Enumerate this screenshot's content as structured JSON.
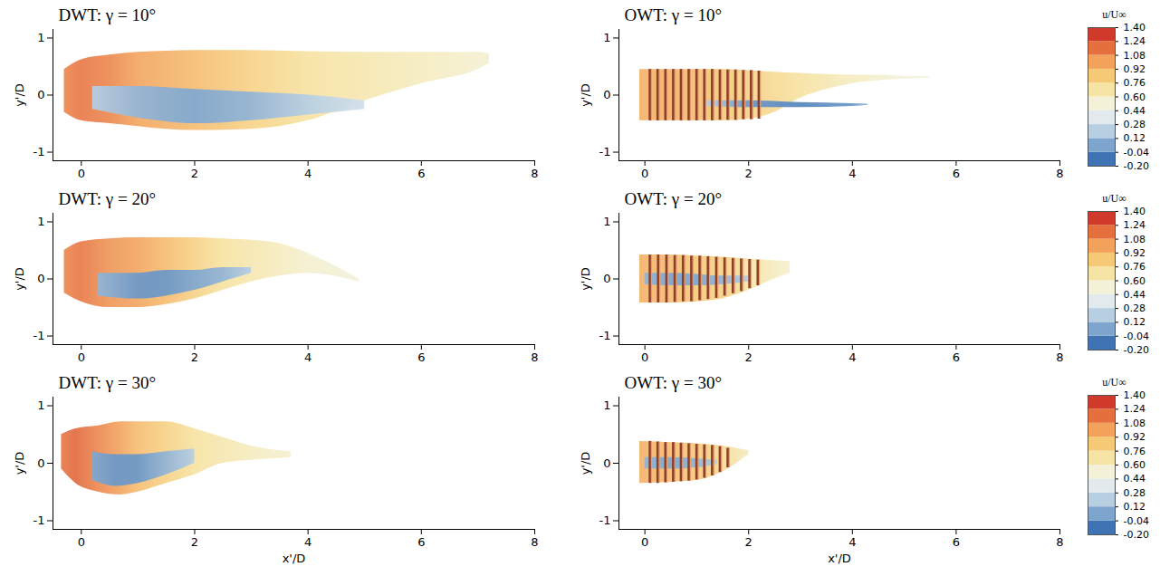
{
  "chart_data": [
    {
      "type": "area",
      "title": "DWT: γ = 10°",
      "ylabel": "y'/D",
      "xlim": [
        -0.5,
        8
      ],
      "ylim": [
        -1.15,
        1.15
      ],
      "xticks": [
        0,
        2,
        4,
        6,
        8
      ],
      "yticks": [
        -1,
        0,
        1
      ],
      "layers": [
        {
          "x": [
            -0.3,
            0,
            0.5,
            1,
            1.5,
            2,
            3,
            4,
            5,
            6,
            7,
            7.2
          ],
          "upper": [
            0.45,
            0.62,
            0.7,
            0.75,
            0.77,
            0.78,
            0.78,
            0.76,
            0.75,
            0.75,
            0.75,
            0.72
          ],
          "lower": [
            -0.3,
            -0.45,
            -0.5,
            -0.55,
            -0.6,
            -0.62,
            -0.6,
            -0.45,
            -0.1,
            0.2,
            0.45,
            0.55
          ],
          "u": [
            1.1,
            1.15,
            1.1,
            1.0,
            0.95,
            0.9,
            0.8,
            0.7,
            0.65,
            0.6,
            0.55,
            0.55
          ]
        },
        {
          "x": [
            0.2,
            1,
            2,
            3,
            4,
            5
          ],
          "upper": [
            0.15,
            0.15,
            0.1,
            0.05,
            0.0,
            -0.1
          ],
          "lower": [
            -0.25,
            -0.4,
            -0.5,
            -0.45,
            -0.35,
            -0.25
          ],
          "u": [
            0.2,
            0.1,
            0.05,
            0.1,
            0.2,
            0.3
          ]
        }
      ]
    },
    {
      "type": "area",
      "title": "OWT: γ = 10°",
      "ylabel": "y'/D",
      "xlim": [
        -0.5,
        8
      ],
      "ylim": [
        -1.15,
        1.15
      ],
      "xticks": [
        0,
        2,
        4,
        6,
        8
      ],
      "yticks": [
        -1,
        0,
        1
      ],
      "layers": [
        {
          "x": [
            -0.1,
            0.5,
            1,
            1.5,
            2,
            2.5,
            3,
            3.5,
            4,
            4.5,
            5,
            5.5
          ],
          "upper": [
            0.45,
            0.45,
            0.45,
            0.45,
            0.43,
            0.4,
            0.38,
            0.36,
            0.35,
            0.35,
            0.33,
            0.32
          ],
          "lower": [
            -0.45,
            -0.45,
            -0.45,
            -0.45,
            -0.42,
            -0.3,
            -0.05,
            0.1,
            0.2,
            0.25,
            0.28,
            0.3
          ],
          "u": [
            0.95,
            0.95,
            0.9,
            0.85,
            0.8,
            0.75,
            0.7,
            0.65,
            0.6,
            0.55,
            0.5,
            0.5
          ]
        },
        {
          "x": [
            1.2,
            2,
            3,
            4,
            4.3
          ],
          "upper": [
            -0.1,
            -0.1,
            -0.13,
            -0.15,
            -0.16
          ],
          "lower": [
            -0.2,
            -0.22,
            -0.22,
            -0.2,
            -0.18
          ],
          "u": [
            0.2,
            0.0,
            -0.05,
            0.0,
            0.1
          ]
        }
      ],
      "rings": {
        "x": [
          0.1,
          0.25,
          0.4,
          0.55,
          0.7,
          0.85,
          1.0,
          1.15,
          1.3,
          1.45,
          1.6,
          1.75,
          1.9,
          2.05,
          2.2
        ],
        "top": [
          0.45,
          0.45,
          0.45,
          0.45,
          0.45,
          0.45,
          0.45,
          0.45,
          0.45,
          0.44,
          0.44,
          0.44,
          0.43,
          0.43,
          0.42
        ],
        "bottom": [
          -0.45,
          -0.45,
          -0.45,
          -0.45,
          -0.45,
          -0.45,
          -0.45,
          -0.45,
          -0.45,
          -0.44,
          -0.44,
          -0.44,
          -0.43,
          -0.43,
          -0.42
        ]
      },
      "colorbar": {
        "label": "u/U∞",
        "range": [
          -0.2,
          1.4
        ],
        "ticks": [
          {
            "value": 1.4,
            "label": "1.40"
          },
          {
            "value": 1.24,
            "label": "1.24"
          },
          {
            "value": 1.08,
            "label": "1.08"
          },
          {
            "value": 0.92,
            "label": "0.92"
          },
          {
            "value": 0.76,
            "label": "0.76"
          },
          {
            "value": 0.6,
            "label": "0.60"
          },
          {
            "value": 0.44,
            "label": "0.44"
          },
          {
            "value": 0.28,
            "label": "0.28"
          },
          {
            "value": 0.12,
            "label": "0.12"
          },
          {
            "value": -0.04,
            "label": "-0.04"
          },
          {
            "value": -0.2,
            "label": "-0.20"
          }
        ],
        "colors": [
          "#3f73b3",
          "#7ea5cd",
          "#b8cfe2",
          "#e2eaee",
          "#f3f1d8",
          "#f6e4a4",
          "#f6c977",
          "#f2a25a",
          "#e6703d",
          "#cf3a2a"
        ]
      }
    },
    {
      "type": "area",
      "title": "DWT: γ = 20°",
      "ylabel": "y'/D",
      "xlim": [
        -0.5,
        8
      ],
      "ylim": [
        -1.15,
        1.15
      ],
      "xticks": [
        0,
        2,
        4,
        6,
        8
      ],
      "yticks": [
        -1,
        0,
        1
      ],
      "layers": [
        {
          "x": [
            -0.3,
            0,
            0.5,
            1,
            1.5,
            2,
            2.5,
            3,
            3.5,
            4,
            4.9
          ],
          "upper": [
            0.5,
            0.65,
            0.7,
            0.72,
            0.72,
            0.72,
            0.7,
            0.68,
            0.62,
            0.45,
            0.0
          ],
          "lower": [
            -0.25,
            -0.4,
            -0.5,
            -0.5,
            -0.45,
            -0.35,
            -0.2,
            -0.05,
            0.05,
            0.1,
            -0.05
          ],
          "u": [
            1.1,
            1.15,
            1.05,
            1.0,
            0.9,
            0.8,
            0.7,
            0.65,
            0.6,
            0.55,
            0.5
          ]
        },
        {
          "x": [
            0.3,
            1,
            1.5,
            2,
            2.5,
            3
          ],
          "upper": [
            0.1,
            0.1,
            0.15,
            0.15,
            0.2,
            0.2
          ],
          "lower": [
            -0.3,
            -0.35,
            -0.3,
            -0.2,
            -0.05,
            0.1
          ],
          "u": [
            0.1,
            0.0,
            0.0,
            0.05,
            0.1,
            0.2
          ]
        }
      ]
    },
    {
      "type": "area",
      "title": "OWT: γ = 20°",
      "ylabel": "y'/D",
      "xlim": [
        -0.5,
        8
      ],
      "ylim": [
        -1.15,
        1.15
      ],
      "xticks": [
        0,
        2,
        4,
        6,
        8
      ],
      "yticks": [
        -1,
        0,
        1
      ],
      "layers": [
        {
          "x": [
            -0.1,
            0.5,
            1,
            1.5,
            2,
            2.5,
            2.8
          ],
          "upper": [
            0.42,
            0.42,
            0.4,
            0.38,
            0.35,
            0.32,
            0.3
          ],
          "lower": [
            -0.42,
            -0.42,
            -0.4,
            -0.35,
            -0.2,
            0.0,
            0.1
          ],
          "u": [
            0.95,
            0.9,
            0.85,
            0.8,
            0.7,
            0.6,
            0.55
          ]
        },
        {
          "x": [
            0,
            0.5,
            1,
            1.5,
            2
          ],
          "upper": [
            0.1,
            0.1,
            0.08,
            0.05,
            0.05
          ],
          "lower": [
            -0.1,
            -0.12,
            -0.12,
            -0.1,
            -0.05
          ],
          "u": [
            0.1,
            0.05,
            0.05,
            0.1,
            0.2
          ]
        }
      ],
      "rings": {
        "x": [
          0.1,
          0.26,
          0.42,
          0.58,
          0.74,
          0.9,
          1.06,
          1.22,
          1.38,
          1.54,
          1.7,
          1.86,
          2.02,
          2.18
        ],
        "top": [
          0.42,
          0.42,
          0.42,
          0.41,
          0.41,
          0.4,
          0.4,
          0.39,
          0.38,
          0.37,
          0.36,
          0.35,
          0.34,
          0.33
        ],
        "bottom": [
          -0.42,
          -0.42,
          -0.42,
          -0.41,
          -0.4,
          -0.4,
          -0.38,
          -0.36,
          -0.34,
          -0.3,
          -0.26,
          -0.22,
          -0.17,
          -0.12
        ]
      },
      "colorbar": {
        "label": "u/U∞",
        "range": [
          -0.2,
          1.4
        ],
        "ticks": [
          {
            "value": 1.4,
            "label": "1.40"
          },
          {
            "value": 1.24,
            "label": "1.24"
          },
          {
            "value": 1.08,
            "label": "1.08"
          },
          {
            "value": 0.92,
            "label": "0.92"
          },
          {
            "value": 0.76,
            "label": "0.76"
          },
          {
            "value": 0.6,
            "label": "0.60"
          },
          {
            "value": 0.44,
            "label": "0.44"
          },
          {
            "value": 0.28,
            "label": "0.28"
          },
          {
            "value": 0.12,
            "label": "0.12"
          },
          {
            "value": -0.04,
            "label": "-0.04"
          },
          {
            "value": -0.2,
            "label": "-0.20"
          }
        ],
        "colors": [
          "#3f73b3",
          "#7ea5cd",
          "#b8cfe2",
          "#e2eaee",
          "#f3f1d8",
          "#f6e4a4",
          "#f6c977",
          "#f2a25a",
          "#e6703d",
          "#cf3a2a"
        ]
      }
    },
    {
      "type": "area",
      "title": "DWT: γ = 30°",
      "xlabel": "x'/D",
      "ylabel": "y'/D",
      "xlim": [
        -0.5,
        8
      ],
      "ylim": [
        -1.15,
        1.15
      ],
      "xticks": [
        0,
        2,
        4,
        6,
        8
      ],
      "yticks": [
        -1,
        0,
        1
      ],
      "layers": [
        {
          "x": [
            -0.35,
            -0.1,
            0.3,
            0.7,
            1,
            1.5,
            2,
            2.5,
            3,
            3.7
          ],
          "upper": [
            0.5,
            0.6,
            0.65,
            0.72,
            0.72,
            0.72,
            0.6,
            0.45,
            0.3,
            0.2
          ],
          "lower": [
            -0.1,
            -0.35,
            -0.5,
            -0.55,
            -0.5,
            -0.35,
            -0.2,
            0.0,
            0.05,
            0.1
          ],
          "u": [
            1.15,
            1.2,
            1.1,
            1.0,
            0.9,
            0.8,
            0.7,
            0.65,
            0.6,
            0.55
          ]
        },
        {
          "x": [
            0.2,
            0.6,
            1,
            1.5,
            2
          ],
          "upper": [
            0.2,
            0.15,
            0.15,
            0.2,
            0.25
          ],
          "lower": [
            -0.3,
            -0.4,
            -0.35,
            -0.2,
            0.0
          ],
          "u": [
            0.05,
            0.0,
            0.0,
            0.1,
            0.2
          ]
        }
      ]
    },
    {
      "type": "area",
      "title": "OWT: γ = 30°",
      "xlabel": "x'/D",
      "ylabel": "y'/D",
      "xlim": [
        -0.5,
        8
      ],
      "ylim": [
        -1.15,
        1.15
      ],
      "xticks": [
        0,
        2,
        4,
        6,
        8
      ],
      "yticks": [
        -1,
        0,
        1
      ],
      "layers": [
        {
          "x": [
            -0.1,
            0.5,
            1,
            1.5,
            2
          ],
          "upper": [
            0.38,
            0.36,
            0.34,
            0.3,
            0.22
          ],
          "lower": [
            -0.35,
            -0.33,
            -0.3,
            -0.15,
            0.15
          ],
          "u": [
            0.95,
            0.9,
            0.85,
            0.75,
            0.6
          ]
        },
        {
          "x": [
            0,
            0.5,
            1,
            1.4
          ],
          "upper": [
            0.1,
            0.1,
            0.08,
            0.05
          ],
          "lower": [
            -0.1,
            -0.1,
            -0.08,
            -0.02
          ],
          "u": [
            0.1,
            0.05,
            0.1,
            0.2
          ]
        }
      ],
      "rings": {
        "x": [
          0.1,
          0.25,
          0.4,
          0.55,
          0.7,
          0.85,
          1.0,
          1.15,
          1.3,
          1.45,
          1.6
        ],
        "top": [
          0.38,
          0.37,
          0.36,
          0.36,
          0.35,
          0.34,
          0.33,
          0.32,
          0.31,
          0.29,
          0.26
        ],
        "bottom": [
          -0.35,
          -0.35,
          -0.34,
          -0.33,
          -0.32,
          -0.31,
          -0.29,
          -0.26,
          -0.22,
          -0.16,
          -0.08
        ]
      },
      "colorbar": {
        "label": "u/U∞",
        "range": [
          -0.2,
          1.4
        ],
        "ticks": [
          {
            "value": 1.4,
            "label": "1.40"
          },
          {
            "value": 1.24,
            "label": "1.24"
          },
          {
            "value": 1.08,
            "label": "1.08"
          },
          {
            "value": 0.92,
            "label": "0.92"
          },
          {
            "value": 0.76,
            "label": "0.76"
          },
          {
            "value": 0.6,
            "label": "0.60"
          },
          {
            "value": 0.44,
            "label": "0.44"
          },
          {
            "value": 0.28,
            "label": "0.28"
          },
          {
            "value": 0.12,
            "label": "0.12"
          },
          {
            "value": -0.04,
            "label": "-0.04"
          },
          {
            "value": -0.2,
            "label": "-0.20"
          }
        ],
        "colors": [
          "#3f73b3",
          "#7ea5cd",
          "#b8cfe2",
          "#e2eaee",
          "#f3f1d8",
          "#f6e4a4",
          "#f6c977",
          "#f2a25a",
          "#e6703d",
          "#cf3a2a"
        ]
      }
    }
  ]
}
